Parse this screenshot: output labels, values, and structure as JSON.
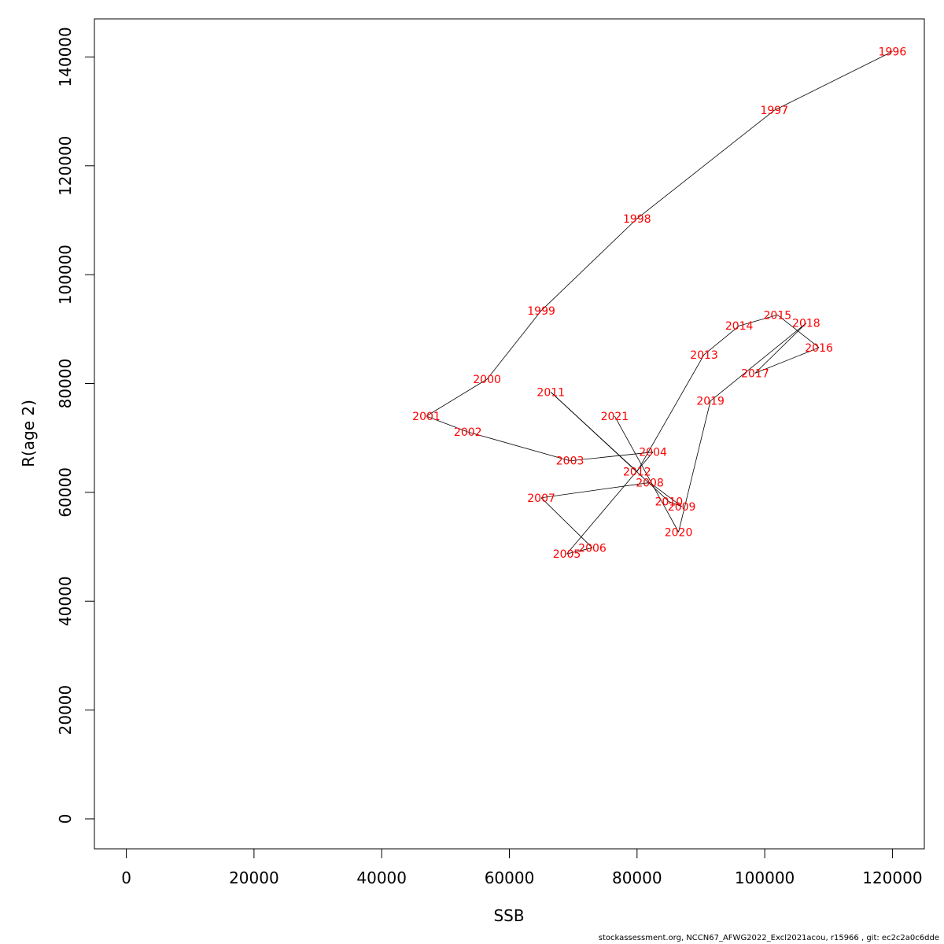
{
  "chart_data": {
    "type": "line",
    "xlabel": "SSB",
    "ylabel": "R(age 2)",
    "xlim": [
      -5000,
      125000
    ],
    "ylim": [
      -5500,
      147000
    ],
    "x_ticks": [
      0,
      20000,
      40000,
      60000,
      80000,
      100000,
      120000
    ],
    "y_ticks": [
      0,
      20000,
      40000,
      60000,
      80000,
      100000,
      120000,
      140000
    ],
    "grid": false,
    "label_color": "#ff0000",
    "line_color": "#000000",
    "points": [
      {
        "year": "1996",
        "ssb": 120000,
        "rec": 141000
      },
      {
        "year": "1997",
        "ssb": 101500,
        "rec": 130200
      },
      {
        "year": "1998",
        "ssb": 80000,
        "rec": 110300
      },
      {
        "year": "1999",
        "ssb": 65000,
        "rec": 93400
      },
      {
        "year": "2000",
        "ssb": 56500,
        "rec": 80800
      },
      {
        "year": "2001",
        "ssb": 47000,
        "rec": 74000
      },
      {
        "year": "2002",
        "ssb": 53500,
        "rec": 71100
      },
      {
        "year": "2003",
        "ssb": 69500,
        "rec": 65800
      },
      {
        "year": "2004",
        "ssb": 82500,
        "rec": 67400
      },
      {
        "year": "2005",
        "ssb": 69000,
        "rec": 48700
      },
      {
        "year": "2006",
        "ssb": 73000,
        "rec": 49800
      },
      {
        "year": "2007",
        "ssb": 65000,
        "rec": 59000
      },
      {
        "year": "2008",
        "ssb": 82000,
        "rec": 61800
      },
      {
        "year": "2009",
        "ssb": 87000,
        "rec": 57400
      },
      {
        "year": "2010",
        "ssb": 85000,
        "rec": 58300
      },
      {
        "year": "2011",
        "ssb": 66500,
        "rec": 78400
      },
      {
        "year": "2012",
        "ssb": 80000,
        "rec": 63800
      },
      {
        "year": "2013",
        "ssb": 90500,
        "rec": 85300
      },
      {
        "year": "2014",
        "ssb": 96000,
        "rec": 90600
      },
      {
        "year": "2015",
        "ssb": 102000,
        "rec": 92600
      },
      {
        "year": "2016",
        "ssb": 108500,
        "rec": 86600
      },
      {
        "year": "2017",
        "ssb": 98500,
        "rec": 81900
      },
      {
        "year": "2018",
        "ssb": 106500,
        "rec": 91100
      },
      {
        "year": "2019",
        "ssb": 91500,
        "rec": 76800
      },
      {
        "year": "2020",
        "ssb": 86500,
        "rec": 52700
      },
      {
        "year": "2021",
        "ssb": 76500,
        "rec": 74000
      }
    ]
  },
  "footer": {
    "text": "stockassessment.org, NCCN67_AFWG2022_Excl2021acou, r15966 , git: ec2c2a0c6dde"
  }
}
